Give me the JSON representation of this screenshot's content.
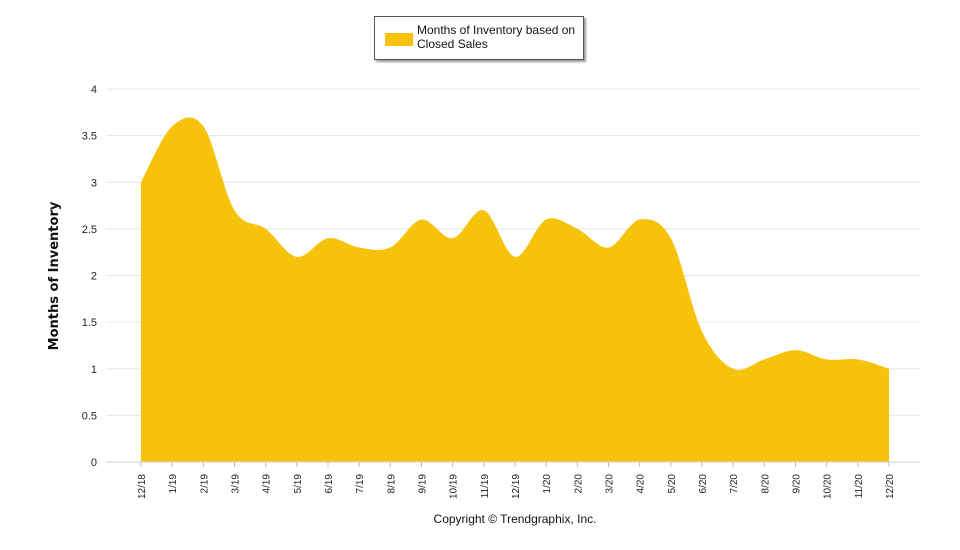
{
  "chart_data": {
    "type": "area",
    "title": "",
    "xlabel": "",
    "ylabel": "Months of Inventory",
    "ylim": [
      0,
      4
    ],
    "yticks": [
      "0",
      "0.5",
      "1",
      "1.5",
      "2",
      "2.5",
      "3",
      "3.5",
      "4"
    ],
    "grid": true,
    "categories": [
      "12/18",
      "1/19",
      "2/19",
      "3/19",
      "4/19",
      "5/19",
      "6/19",
      "7/19",
      "8/19",
      "9/19",
      "10/19",
      "11/19",
      "12/19",
      "1/20",
      "2/20",
      "3/20",
      "4/20",
      "5/20",
      "6/20",
      "7/20",
      "8/20",
      "9/20",
      "10/20",
      "11/20",
      "12/20"
    ],
    "series": [
      {
        "name": "Months of Inventory based on Closed Sales",
        "color": "#F6C30A",
        "values": [
          3.0,
          3.6,
          3.6,
          2.7,
          2.5,
          2.2,
          2.4,
          2.3,
          2.3,
          2.6,
          2.4,
          2.7,
          2.2,
          2.6,
          2.5,
          2.3,
          2.6,
          2.4,
          1.4,
          1.0,
          1.1,
          1.2,
          1.1,
          1.1,
          1.0
        ]
      }
    ],
    "legend_position": "top-center"
  },
  "legend": {
    "label": "Months of Inventory based on Closed Sales"
  },
  "footer": {
    "copyright": "Copyright © Trendgraphix, Inc."
  }
}
